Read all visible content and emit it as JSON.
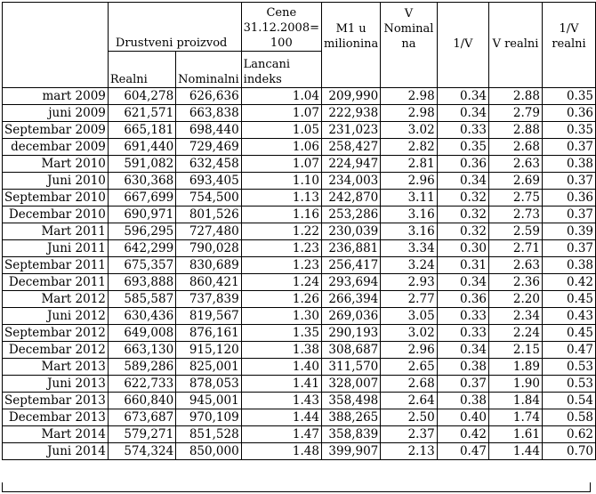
{
  "headers": {
    "row1": {
      "drustveni": "Drustveni proizvod",
      "cene": "Cene 31.12.2008= 100",
      "m1": "M1 u milionina",
      "v_nominal": "V Nominal na",
      "inv_v": "1/V",
      "v_realni": "V realni",
      "inv_v_realni": "1/V realni"
    },
    "row2": {
      "realni": "Realni",
      "nominalni": "Nominalni",
      "lancani": "Lancani indeks"
    }
  },
  "rows": [
    [
      "mart 2009",
      "604,278",
      "626,636",
      "1.04",
      "209,990",
      "2.98",
      "0.34",
      "2.88",
      "0.35"
    ],
    [
      "juni 2009",
      "621,571",
      "663,838",
      "1.07",
      "222,938",
      "2.98",
      "0.34",
      "2.79",
      "0.36"
    ],
    [
      "Septembar 2009",
      "665,181",
      "698,440",
      "1.05",
      "231,023",
      "3.02",
      "0.33",
      "2.88",
      "0.35"
    ],
    [
      "decembar 2009",
      "691,440",
      "729,469",
      "1.06",
      "258,427",
      "2.82",
      "0.35",
      "2.68",
      "0.37"
    ],
    [
      "Mart 2010",
      "591,082",
      "632,458",
      "1.07",
      "224,947",
      "2.81",
      "0.36",
      "2.63",
      "0.38"
    ],
    [
      "Juni 2010",
      "630,368",
      "693,405",
      "1.10",
      "234,003",
      "2.96",
      "0.34",
      "2.69",
      "0.37"
    ],
    [
      "Septembar 2010",
      "667,699",
      "754,500",
      "1.13",
      "242,870",
      "3.11",
      "0.32",
      "2.75",
      "0.36"
    ],
    [
      "Decembar 2010",
      "690,971",
      "801,526",
      "1.16",
      "253,286",
      "3.16",
      "0.32",
      "2.73",
      "0.37"
    ],
    [
      "Mart 2011",
      "596,295",
      "727,480",
      "1.22",
      "230,039",
      "3.16",
      "0.32",
      "2.59",
      "0.39"
    ],
    [
      "Juni 2011",
      "642,299",
      "790,028",
      "1.23",
      "236,881",
      "3.34",
      "0.30",
      "2.71",
      "0.37"
    ],
    [
      "Septembar 2011",
      "675,357",
      "830,689",
      "1.23",
      "256,417",
      "3.24",
      "0.31",
      "2.63",
      "0.38"
    ],
    [
      "Decembar 2011",
      "693,888",
      "860,421",
      "1.24",
      "293,694",
      "2.93",
      "0.34",
      "2.36",
      "0.42"
    ],
    [
      "Mart 2012",
      "585,587",
      "737,839",
      "1.26",
      "266,394",
      "2.77",
      "0.36",
      "2.20",
      "0.45"
    ],
    [
      "Juni 2012",
      "630,436",
      "819,567",
      "1.30",
      "269,036",
      "3.05",
      "0.33",
      "2.34",
      "0.43"
    ],
    [
      "Septembar 2012",
      "649,008",
      "876,161",
      "1.35",
      "290,193",
      "3.02",
      "0.33",
      "2.24",
      "0.45"
    ],
    [
      "Decembar 2012",
      "663,130",
      "915,120",
      "1.38",
      "308,687",
      "2.96",
      "0.34",
      "2.15",
      "0.47"
    ],
    [
      "Mart 2013",
      "589,286",
      "825,001",
      "1.40",
      "311,570",
      "2.65",
      "0.38",
      "1.89",
      "0.53"
    ],
    [
      "Juni 2013",
      "622,733",
      "878,053",
      "1.41",
      "328,007",
      "2.68",
      "0.37",
      "1.90",
      "0.53"
    ],
    [
      "Septembar 2013",
      "660,840",
      "945,001",
      "1.43",
      "358,498",
      "2.64",
      "0.38",
      "1.84",
      "0.54"
    ],
    [
      "Decembar 2013",
      "673,687",
      "970,109",
      "1.44",
      "388,265",
      "2.50",
      "0.40",
      "1.74",
      "0.58"
    ],
    [
      "Mart 2014",
      "579,271",
      "851,528",
      "1.47",
      "358,839",
      "2.37",
      "0.42",
      "1.61",
      "0.62"
    ],
    [
      "Juni 2014",
      "574,324",
      "850,000",
      "1.48",
      "399,907",
      "2.13",
      "0.47",
      "1.44",
      "0.70"
    ]
  ]
}
